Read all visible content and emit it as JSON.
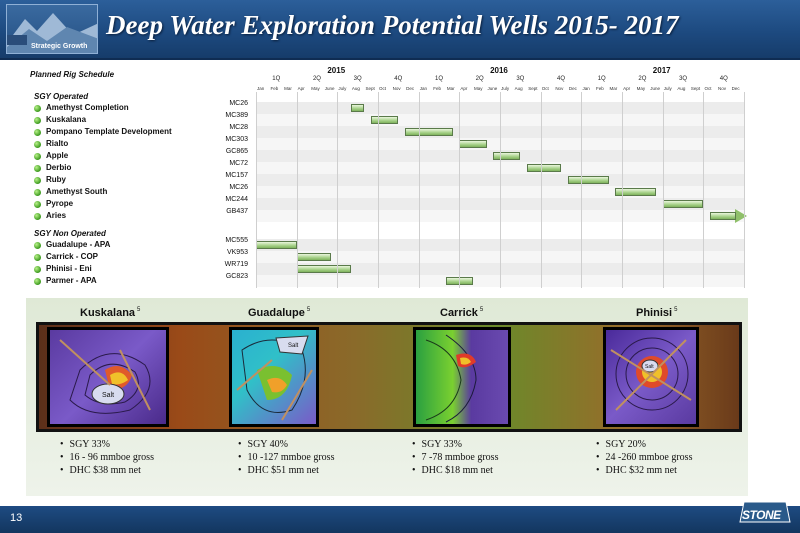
{
  "header": {
    "title": "Deep Water Exploration Potential Wells 2015- 2017",
    "logo_label": "Strategic Growth"
  },
  "schedule": {
    "title": "Planned Rig Schedule",
    "years": [
      "2015",
      "2016",
      "2017"
    ],
    "quarters": [
      "1Q",
      "2Q",
      "3Q",
      "4Q"
    ],
    "months": [
      "Jan",
      "Feb",
      "Mar",
      "Apr",
      "May",
      "June",
      "July",
      "Aug",
      "Sept",
      "Oct",
      "Nov",
      "Dec"
    ],
    "sections": [
      {
        "title": "SGY Operated",
        "rows": [
          {
            "name": "Amethyst Completion",
            "code": "MC26",
            "start": 7,
            "end": 8
          },
          {
            "name": "Kuskalana",
            "code": "MC389",
            "start": 8.5,
            "end": 10.5
          },
          {
            "name": "Pompano Template Development",
            "code": "MC28",
            "start": 11,
            "end": 14.5
          },
          {
            "name": "Rialto",
            "code": "MC303",
            "start": 15,
            "end": 17
          },
          {
            "name": "Apple",
            "code": "GC865",
            "start": 17.5,
            "end": 19.5
          },
          {
            "name": "Derbio",
            "code": "MC72",
            "start": 20,
            "end": 22.5
          },
          {
            "name": "Ruby",
            "code": "MC157",
            "start": 23,
            "end": 26
          },
          {
            "name": "Amethyst South",
            "code": "MC26",
            "start": 26.5,
            "end": 29.5
          },
          {
            "name": "Pyrope",
            "code": "MC244",
            "start": 30,
            "end": 33
          },
          {
            "name": "Aries",
            "code": "GB437",
            "start": 33.5,
            "end": 36,
            "arrow": true
          }
        ]
      },
      {
        "title": "SGY Non Operated",
        "rows": [
          {
            "name": "Guadalupe - APA",
            "code": "MC555",
            "start": 0,
            "end": 3
          },
          {
            "name": "Carrick - COP",
            "code": "VK953",
            "start": 3,
            "end": 5.5
          },
          {
            "name": "Phinisi - Eni",
            "code": "WR719",
            "start": 3,
            "end": 7
          },
          {
            "name": "Parmer - APA",
            "code": "GC823",
            "start": 14,
            "end": 16
          }
        ]
      }
    ]
  },
  "prospects": [
    {
      "name": "Kuskalana",
      "note": "5",
      "bullets": [
        "SGY 33%",
        "16 - 96 mmboe gross",
        "DHC $38 mm net"
      ]
    },
    {
      "name": "Guadalupe",
      "note": "5",
      "bullets": [
        "SGY 40%",
        "10 -127 mmboe gross",
        "DHC $51 mm net"
      ]
    },
    {
      "name": "Carrick",
      "note": "5",
      "bullets": [
        "SGY 33%",
        "7 -78 mmboe gross",
        "DHC $18 mm net"
      ]
    },
    {
      "name": "Phinisi",
      "note": "5",
      "bullets": [
        "SGY 20%",
        "24 -260 mmboe gross",
        "DHC $32 mm net"
      ]
    }
  ],
  "map_labels": {
    "salt": "Salt"
  },
  "footer": {
    "page_number": "13",
    "brand": "STONE"
  },
  "colors": {
    "header_blue": "#1d4a80",
    "bar_green": "#a5d087",
    "bullet_green": "#3c9a1e"
  }
}
